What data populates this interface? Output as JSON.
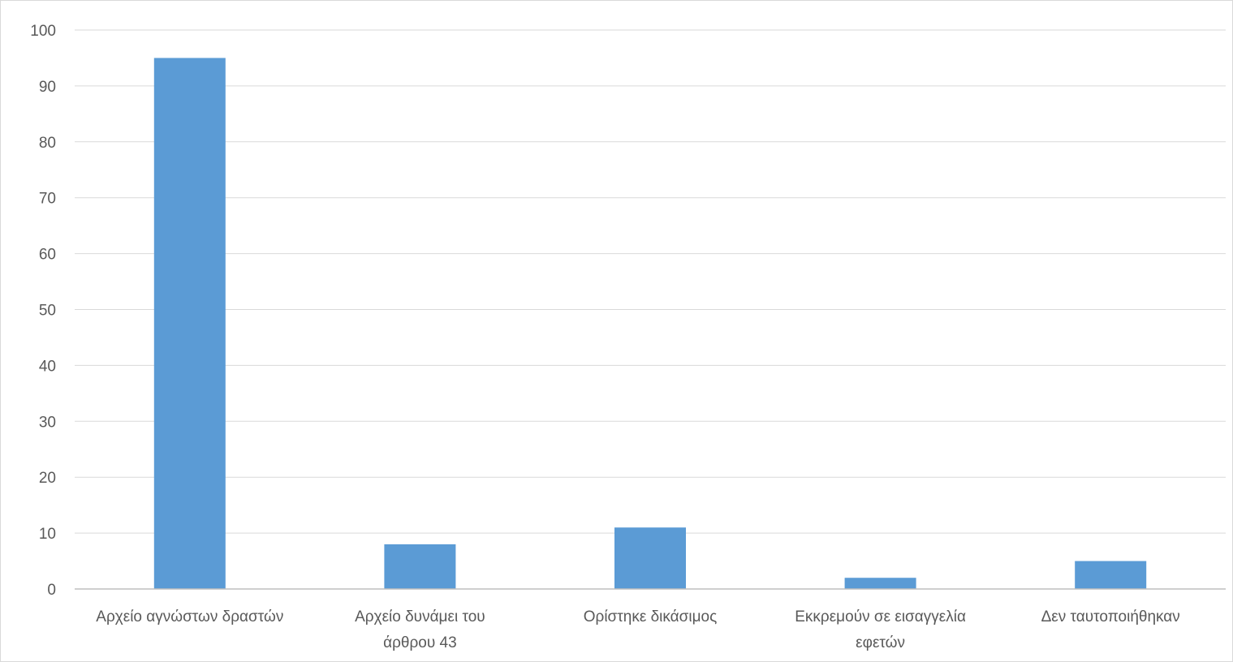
{
  "chart_data": {
    "type": "bar",
    "categories": [
      [
        "Αρχείο αγνώστων δραστών"
      ],
      [
        "Αρχείο δυνάμει του",
        "άρθρου 43"
      ],
      [
        "Ορίστηκε δικάσιμος"
      ],
      [
        "Εκκρεμούν σε εισαγγελία",
        "εφετών"
      ],
      [
        "Δεν ταυτοποιήθηκαν"
      ]
    ],
    "values": [
      95,
      8,
      11,
      2,
      5
    ],
    "ylim": [
      0,
      100
    ],
    "yticks": [
      0,
      10,
      20,
      30,
      40,
      50,
      60,
      70,
      80,
      90,
      100
    ],
    "grid": true,
    "colors": {
      "bar": "#5b9bd5",
      "gridline": "#d9d9d9",
      "axis": "#bfbfbf",
      "text": "#595959"
    }
  }
}
